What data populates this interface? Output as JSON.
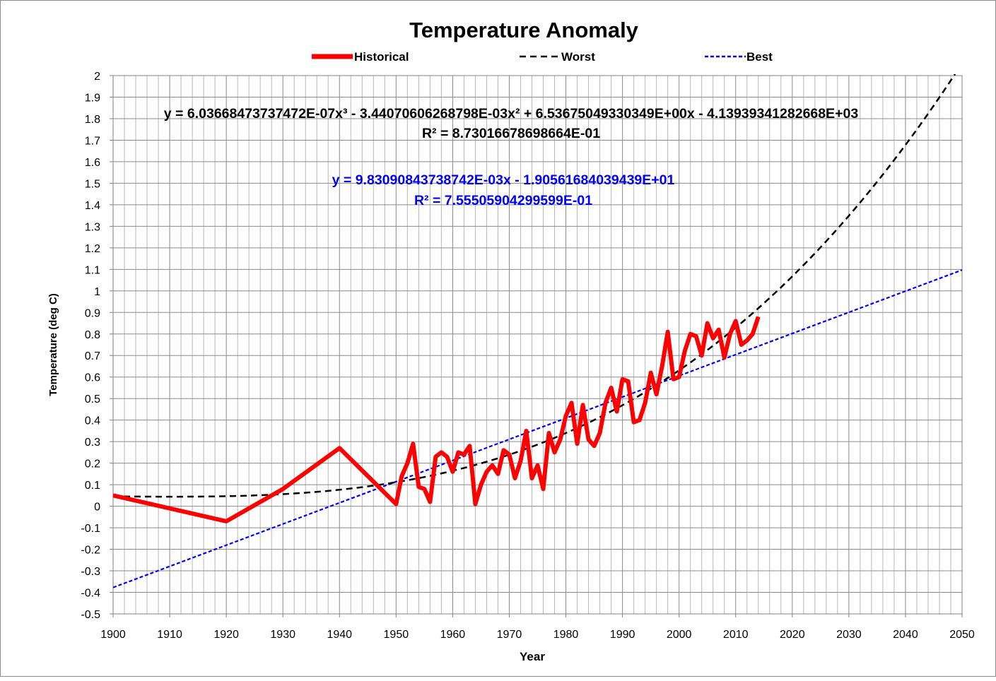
{
  "chart_data": {
    "type": "line",
    "title": "Temperature Anomaly",
    "xlabel": "Year",
    "ylabel": "Temperature (deg C)",
    "xlim": [
      1900,
      2050
    ],
    "ylim": [
      -0.5,
      2
    ],
    "x_major_step": 10,
    "x_minor_step": 2,
    "y_major_step": 0.1,
    "grid": true,
    "legend_position": "top",
    "x_ticks": [
      "1900",
      "1910",
      "1920",
      "1930",
      "1940",
      "1950",
      "1960",
      "1970",
      "1980",
      "1990",
      "2000",
      "2010",
      "2020",
      "2030",
      "2040",
      "2050"
    ],
    "y_ticks": [
      "-0.5",
      "-0.4",
      "-0.3",
      "-0.2",
      "-0.1",
      "0",
      "0.1",
      "0.2",
      "0.3",
      "0.4",
      "0.5",
      "0.6",
      "0.7",
      "0.8",
      "0.9",
      "1",
      "1.1",
      "1.2",
      "1.3",
      "1.4",
      "1.5",
      "1.6",
      "1.7",
      "1.8",
      "1.9",
      "2"
    ],
    "legend": [
      {
        "name": "Historical",
        "color": "#ff0000",
        "style": "solid"
      },
      {
        "name": "Worst",
        "color": "#000000",
        "style": "dashed"
      },
      {
        "name": "Best",
        "color": "#0000ff",
        "style": "dashed"
      }
    ],
    "series": [
      {
        "name": "Historical",
        "color": "#ff0000",
        "x": [
          1900,
          1920,
          1930,
          1940,
          1950,
          1951,
          1952,
          1953,
          1954,
          1955,
          1956,
          1957,
          1958,
          1959,
          1960,
          1961,
          1962,
          1963,
          1964,
          1965,
          1966,
          1967,
          1968,
          1969,
          1970,
          1971,
          1972,
          1973,
          1974,
          1975,
          1976,
          1977,
          1978,
          1979,
          1980,
          1981,
          1982,
          1983,
          1984,
          1985,
          1986,
          1987,
          1988,
          1989,
          1990,
          1991,
          1992,
          1993,
          1994,
          1995,
          1996,
          1997,
          1998,
          1999,
          2000,
          2001,
          2002,
          2003,
          2004,
          2005,
          2006,
          2007,
          2008,
          2009,
          2010,
          2011,
          2012,
          2013,
          2014
        ],
        "y": [
          0.05,
          -0.07,
          0.08,
          0.27,
          0.01,
          0.14,
          0.2,
          0.29,
          0.09,
          0.08,
          0.02,
          0.23,
          0.25,
          0.23,
          0.16,
          0.25,
          0.24,
          0.28,
          0.01,
          0.1,
          0.16,
          0.19,
          0.15,
          0.26,
          0.24,
          0.13,
          0.21,
          0.35,
          0.13,
          0.19,
          0.08,
          0.34,
          0.25,
          0.31,
          0.42,
          0.48,
          0.29,
          0.47,
          0.31,
          0.28,
          0.34,
          0.48,
          0.55,
          0.44,
          0.59,
          0.58,
          0.39,
          0.4,
          0.48,
          0.62,
          0.52,
          0.65,
          0.81,
          0.59,
          0.6,
          0.72,
          0.8,
          0.79,
          0.7,
          0.85,
          0.78,
          0.82,
          0.69,
          0.8,
          0.86,
          0.75,
          0.77,
          0.8,
          0.88
        ]
      },
      {
        "name": "Worst",
        "color": "#000000",
        "fit": "polynomial",
        "coefficients": [
          6.03668473737472e-07,
          -0.00344070606268798,
          6.53675049330349,
          -4139.39341282668
        ],
        "x_range": [
          1900,
          2050
        ]
      },
      {
        "name": "Best",
        "color": "#0000ff",
        "fit": "linear",
        "coefficients": [
          0.00983090843738742,
          -19.0561684039439
        ],
        "x_range": [
          1900,
          2050
        ]
      }
    ],
    "annotations": [
      {
        "id": "worst_eq",
        "text": "y = 6.03668473737472E-07x³ - 3.44070606268798E-03x² + 6.53675049330349E+00x - 4.13939341282668E+03",
        "color": "#000000"
      },
      {
        "id": "worst_r2",
        "text": "R² = 8.73016678698664E-01",
        "color": "#000000"
      },
      {
        "id": "best_eq",
        "text": "y = 9.83090843738742E-03x - 1.90561684039439E+01",
        "color": "#0000ff"
      },
      {
        "id": "best_r2",
        "text": "R² = 7.55505904299599E-01",
        "color": "#0000ff"
      }
    ]
  }
}
